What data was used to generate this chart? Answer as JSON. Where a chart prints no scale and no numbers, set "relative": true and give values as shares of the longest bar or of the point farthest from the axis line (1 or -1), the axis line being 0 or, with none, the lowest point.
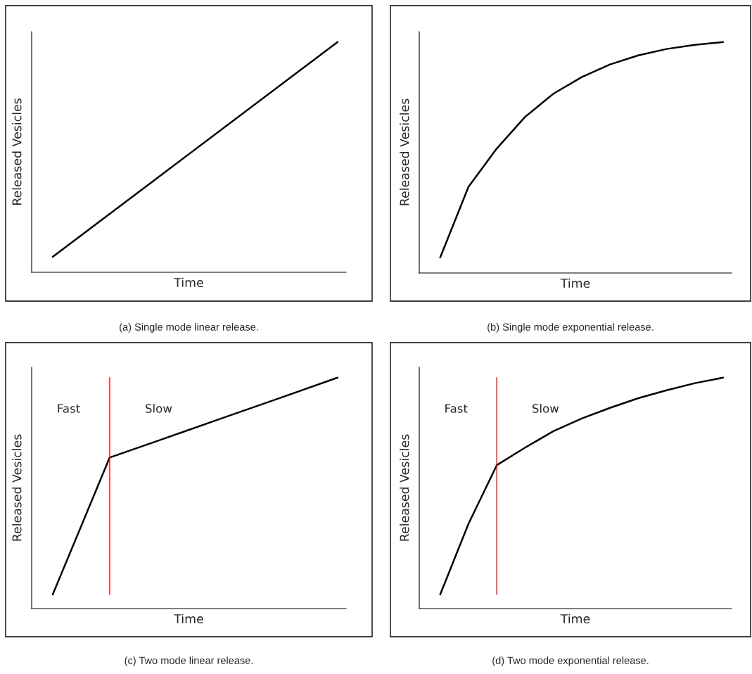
{
  "chart_data": [
    {
      "type": "line",
      "relative": true,
      "xlabel": "Time",
      "ylabel": "Released Vesicles",
      "categories": [
        null,
        null
      ],
      "series": [
        {
          "color": "#000000",
          "values": [
            0.067,
            1
          ]
        }
      ],
      "annotations": [
        "(a) Single mode linear release."
      ]
    },
    {
      "type": "line",
      "relative": true,
      "xlabel": "Time",
      "ylabel": "Released Vesicles",
      "categories": [
        null,
        null,
        null,
        null,
        null,
        null,
        null,
        null,
        null,
        null,
        null
      ],
      "series": [
        {
          "color": "#000000",
          "values": [
            0.067,
            0.373,
            0.539,
            0.676,
            0.776,
            0.848,
            0.903,
            0.942,
            0.97,
            0.988,
            1
          ]
        }
      ],
      "annotations": [
        "(b) Single mode exponential release."
      ]
    },
    {
      "type": "line",
      "relative": true,
      "xlabel": "Time",
      "ylabel": "Released Vesicles",
      "categories": [
        null,
        null,
        null,
        null,
        null,
        null
      ],
      "series": [
        {
          "color": "#000000",
          "values": [
            0.061,
            0.654,
            0.74,
            0.827,
            0.913,
            1
          ]
        }
      ],
      "annotations": [
        "Fast",
        "Slow",
        "(c) Two mode linear release."
      ]
    },
    {
      "type": "line",
      "relative": true,
      "xlabel": "Time",
      "ylabel": "Released Vesicles",
      "categories": [
        null,
        null,
        null,
        null,
        null,
        null,
        null,
        null,
        null,
        null,
        null
      ],
      "series": [
        {
          "color": "#000000",
          "values": [
            0.061,
            0.367,
            0.621,
            0.697,
            0.768,
            0.823,
            0.869,
            0.911,
            0.945,
            0.976,
            1
          ]
        }
      ],
      "annotations": [
        "Fast",
        "Slow",
        "(d) Two mode exponential release."
      ]
    }
  ]
}
